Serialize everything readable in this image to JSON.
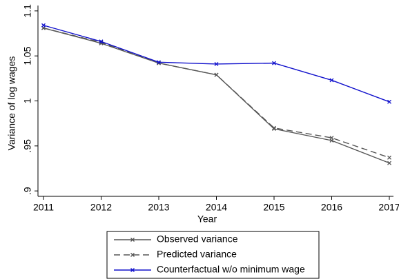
{
  "chart_data": {
    "type": "line",
    "x_label": "Year",
    "y_label": "Variance of log wages",
    "x": [
      2011,
      2012,
      2013,
      2014,
      2015,
      2016,
      2017
    ],
    "series": [
      {
        "name": "Observed variance",
        "color": "#555555",
        "line_style": "solid",
        "marker": "x",
        "values": [
          1.081,
          1.064,
          1.042,
          1.029,
          0.969,
          0.956,
          0.931
        ]
      },
      {
        "name": "Predicted variance",
        "color": "#555555",
        "line_style": "dashed",
        "marker": "x",
        "values": [
          1.081,
          1.065,
          1.042,
          1.029,
          0.97,
          0.959,
          0.937
        ]
      },
      {
        "name": "Counterfactual w/o minimum wage",
        "color": "#1010cc",
        "line_style": "solid",
        "marker": "x",
        "values": [
          1.084,
          1.066,
          1.043,
          1.041,
          1.042,
          1.023,
          0.999
        ]
      }
    ],
    "xlim": [
      2011,
      2017
    ],
    "xticks": [
      2011,
      2012,
      2013,
      2014,
      2015,
      2016,
      2017
    ],
    "ylim": [
      0.894,
      1.106
    ],
    "yticks": [
      {
        "value": 0.9,
        "label": ".9"
      },
      {
        "value": 0.95,
        "label": ".95"
      },
      1,
      1.05,
      1.1
    ],
    "grid": false,
    "legend": "bottom"
  }
}
